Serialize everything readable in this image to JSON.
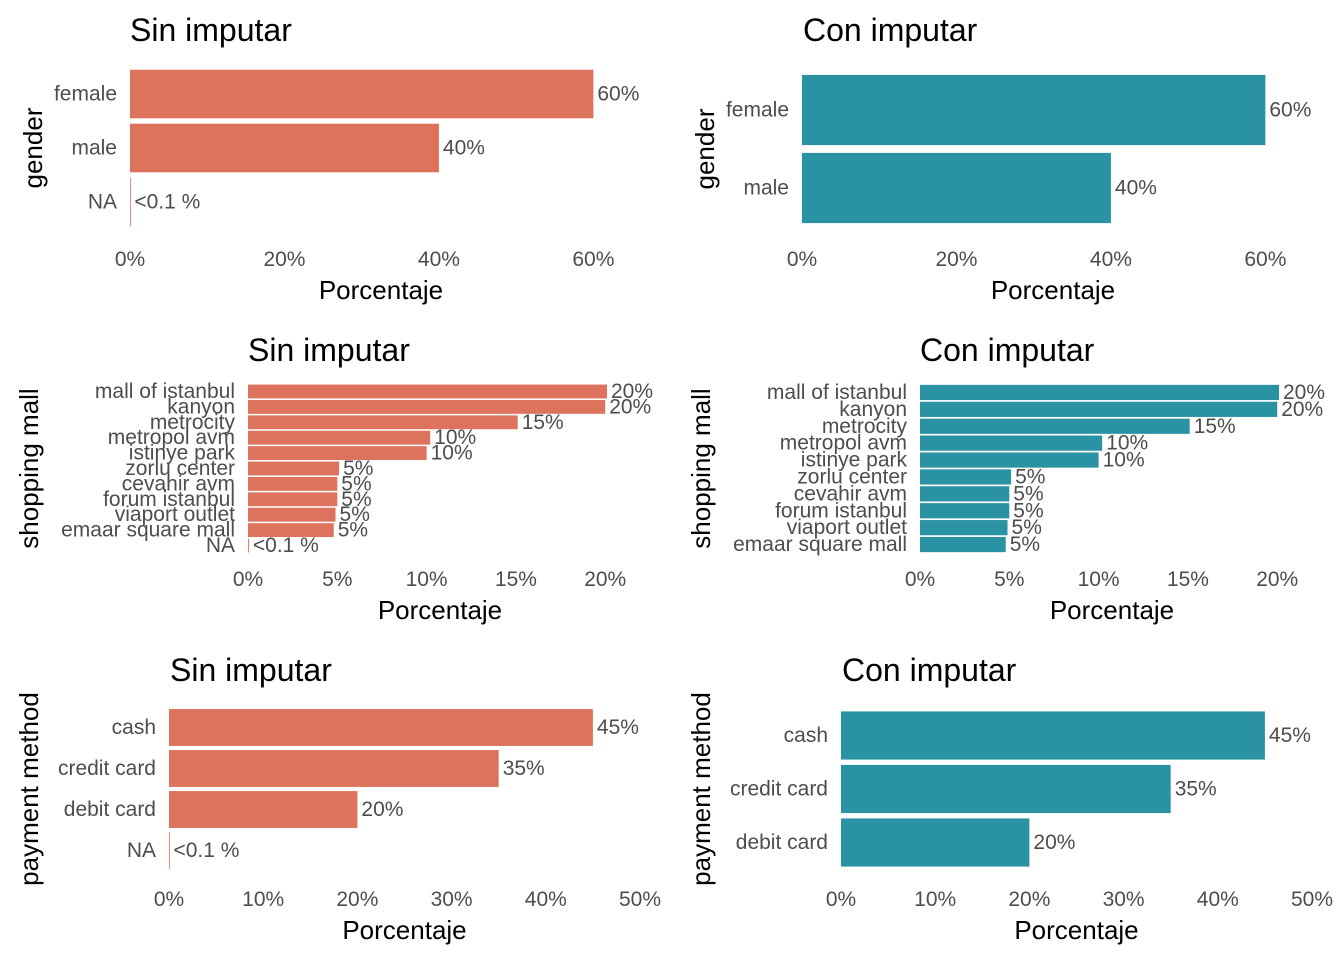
{
  "colors": {
    "sin_imputar": "#DE735D",
    "con_imputar": "#2A93A3",
    "text": "#4d4d4d"
  },
  "chart_data": [
    {
      "type": "bar",
      "orientation": "horizontal",
      "title": "Sin imputar",
      "xlabel": "Porcentaje",
      "ylabel": "gender",
      "categories": [
        "female",
        "male",
        "NA"
      ],
      "values": [
        60,
        40,
        0.05
      ],
      "value_labels": [
        "60%",
        "40%",
        "<0.1 %"
      ],
      "xlim": [
        0,
        65
      ],
      "xticks": [
        0,
        20,
        40,
        60
      ],
      "xtick_labels": [
        "0%",
        "20%",
        "40%",
        "60%"
      ],
      "color": "#DE735D",
      "grid": false
    },
    {
      "type": "bar",
      "orientation": "horizontal",
      "title": "Con imputar",
      "xlabel": "Porcentaje",
      "ylabel": "gender",
      "categories": [
        "female",
        "male"
      ],
      "values": [
        60,
        40
      ],
      "value_labels": [
        "60%",
        "40%"
      ],
      "xlim": [
        0,
        65
      ],
      "xticks": [
        0,
        20,
        40,
        60
      ],
      "xtick_labels": [
        "0%",
        "20%",
        "40%",
        "60%"
      ],
      "color": "#2A93A3",
      "grid": false
    },
    {
      "type": "bar",
      "orientation": "horizontal",
      "title": "Sin imputar",
      "xlabel": "Porcentaje",
      "ylabel": "shopping mall",
      "categories": [
        "mall of istanbul",
        "kanyon",
        "metrocity",
        "metropol avm",
        "istinye park",
        "zorlu center",
        "cevahir avm",
        "forum istanbul",
        "viaport outlet",
        "emaar square mall",
        "NA"
      ],
      "values": [
        20.1,
        20.0,
        15.1,
        10.2,
        10.0,
        5.1,
        5.0,
        5.0,
        4.9,
        4.8,
        0.05
      ],
      "value_labels": [
        "20%",
        "20%",
        "15%",
        "10%",
        "10%",
        "5%",
        "5%",
        "5%",
        "5%",
        "5%",
        "<0.1 %"
      ],
      "xlim": [
        0,
        21.5
      ],
      "xticks": [
        0,
        5,
        10,
        15,
        20
      ],
      "xtick_labels": [
        "0%",
        "5%",
        "10%",
        "15%",
        "20%"
      ],
      "color": "#DE735D",
      "grid": false
    },
    {
      "type": "bar",
      "orientation": "horizontal",
      "title": "Con imputar",
      "xlabel": "Porcentaje",
      "ylabel": "shopping mall",
      "categories": [
        "mall of istanbul",
        "kanyon",
        "metrocity",
        "metropol avm",
        "istinye park",
        "zorlu center",
        "cevahir avm",
        "forum istanbul",
        "viaport outlet",
        "emaar square mall"
      ],
      "values": [
        20.1,
        20.0,
        15.1,
        10.2,
        10.0,
        5.1,
        5.0,
        5.0,
        4.9,
        4.8
      ],
      "value_labels": [
        "20%",
        "20%",
        "15%",
        "10%",
        "10%",
        "5%",
        "5%",
        "5%",
        "5%",
        "5%"
      ],
      "xlim": [
        0,
        21.5
      ],
      "xticks": [
        0,
        5,
        10,
        15,
        20
      ],
      "xtick_labels": [
        "0%",
        "5%",
        "10%",
        "15%",
        "20%"
      ],
      "color": "#2A93A3",
      "grid": false
    },
    {
      "type": "bar",
      "orientation": "horizontal",
      "title": "Sin imputar",
      "xlabel": "Porcentaje",
      "ylabel": "payment method",
      "categories": [
        "cash",
        "credit card",
        "debit card",
        "NA"
      ],
      "values": [
        45,
        35,
        20,
        0.05
      ],
      "value_labels": [
        "45%",
        "35%",
        "20%",
        "<0.1 %"
      ],
      "xlim": [
        0,
        50
      ],
      "xticks": [
        0,
        10,
        20,
        30,
        40,
        50
      ],
      "xtick_labels": [
        "0%",
        "10%",
        "20%",
        "30%",
        "40%",
        "50%"
      ],
      "color": "#DE735D",
      "grid": false
    },
    {
      "type": "bar",
      "orientation": "horizontal",
      "title": "Con imputar",
      "xlabel": "Porcentaje",
      "ylabel": "payment method",
      "categories": [
        "cash",
        "credit card",
        "debit card"
      ],
      "values": [
        45,
        35,
        20
      ],
      "value_labels": [
        "45%",
        "35%",
        "20%"
      ],
      "xlim": [
        0,
        50
      ],
      "xticks": [
        0,
        10,
        20,
        30,
        40,
        50
      ],
      "xtick_labels": [
        "0%",
        "10%",
        "20%",
        "30%",
        "40%",
        "50%"
      ],
      "color": "#2A93A3",
      "grid": false
    }
  ]
}
